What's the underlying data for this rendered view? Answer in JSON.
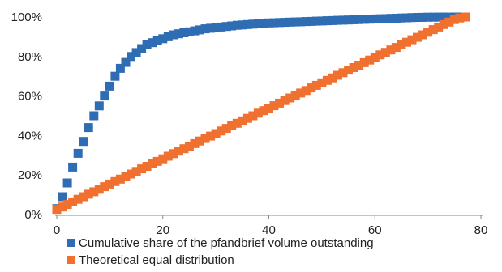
{
  "chart_data": {
    "type": "scatter",
    "xlim": [
      0,
      80
    ],
    "ylim": [
      0,
      100
    ],
    "x_ticks": [
      "0",
      "20",
      "40",
      "60",
      "80"
    ],
    "y_ticks": [
      "0%",
      "20%",
      "40%",
      "60%",
      "80%",
      "100%"
    ],
    "legend_position": "bottom-left",
    "grid": false,
    "series": [
      {
        "name": "Cumulative share of the pfandbrief volume outstanding",
        "color": "#2e6db4",
        "x": [
          0,
          1,
          2,
          3,
          4,
          5,
          6,
          7,
          8,
          9,
          10,
          11,
          12,
          13,
          14,
          15,
          16,
          17,
          18,
          19,
          20,
          21,
          22,
          23,
          24,
          25,
          26,
          27,
          28,
          29,
          30,
          31,
          32,
          33,
          34,
          35,
          36,
          37,
          38,
          39,
          40,
          41,
          42,
          43,
          44,
          45,
          46,
          47,
          48,
          49,
          50,
          51,
          52,
          53,
          54,
          55,
          56,
          57,
          58,
          59,
          60,
          61,
          62,
          63,
          64,
          65,
          66,
          67,
          68,
          69,
          70,
          71,
          72,
          73,
          74,
          75,
          76,
          77
        ],
        "y": [
          3,
          9,
          16,
          24,
          31,
          37,
          44,
          50,
          55,
          60,
          65,
          70,
          74,
          77,
          80,
          82,
          84,
          86,
          87,
          88,
          89,
          90,
          91,
          91.5,
          92,
          92.5,
          93,
          93.5,
          94,
          94.3,
          94.6,
          94.9,
          95.2,
          95.5,
          95.8,
          96,
          96.2,
          96.4,
          96.6,
          96.8,
          97,
          97.1,
          97.2,
          97.3,
          97.4,
          97.5,
          97.6,
          97.7,
          97.8,
          97.9,
          98,
          98.1,
          98.2,
          98.3,
          98.4,
          98.5,
          98.6,
          98.7,
          98.8,
          98.9,
          99,
          99.1,
          99.2,
          99.3,
          99.4,
          99.5,
          99.6,
          99.7,
          99.8,
          99.85,
          99.9,
          99.92,
          99.94,
          99.96,
          99.97,
          99.98,
          99.99,
          100
        ]
      },
      {
        "name": "Theoretical equal distribution",
        "color": "#f0702f",
        "x": [
          0,
          1,
          2,
          3,
          4,
          5,
          6,
          7,
          8,
          9,
          10,
          11,
          12,
          13,
          14,
          15,
          16,
          17,
          18,
          19,
          20,
          21,
          22,
          23,
          24,
          25,
          26,
          27,
          28,
          29,
          30,
          31,
          32,
          33,
          34,
          35,
          36,
          37,
          38,
          39,
          40,
          41,
          42,
          43,
          44,
          45,
          46,
          47,
          48,
          49,
          50,
          51,
          52,
          53,
          54,
          55,
          56,
          57,
          58,
          59,
          60,
          61,
          62,
          63,
          64,
          65,
          66,
          67,
          68,
          69,
          70,
          71,
          72,
          73,
          74,
          75,
          76,
          77
        ],
        "y": [
          2.6,
          3.8,
          5.1,
          6.4,
          7.7,
          9,
          10.3,
          11.5,
          12.8,
          14.1,
          15.4,
          16.7,
          17.9,
          19.2,
          20.5,
          21.8,
          23.1,
          24.4,
          25.6,
          26.9,
          28.2,
          29.5,
          30.8,
          32.1,
          33.3,
          34.6,
          35.9,
          37.2,
          38.5,
          39.7,
          41,
          42.3,
          43.6,
          44.9,
          46.2,
          47.4,
          48.7,
          50,
          51.3,
          52.6,
          53.8,
          55.1,
          56.4,
          57.7,
          59,
          60.3,
          61.5,
          62.8,
          64.1,
          65.4,
          66.7,
          67.9,
          69.2,
          70.5,
          71.8,
          73.1,
          74.4,
          75.6,
          76.9,
          78.2,
          79.5,
          80.8,
          82.1,
          83.3,
          84.6,
          85.9,
          87.2,
          88.5,
          89.7,
          91,
          92.3,
          93.6,
          94.9,
          96.2,
          97.4,
          98.7,
          99.5,
          100
        ]
      }
    ]
  }
}
